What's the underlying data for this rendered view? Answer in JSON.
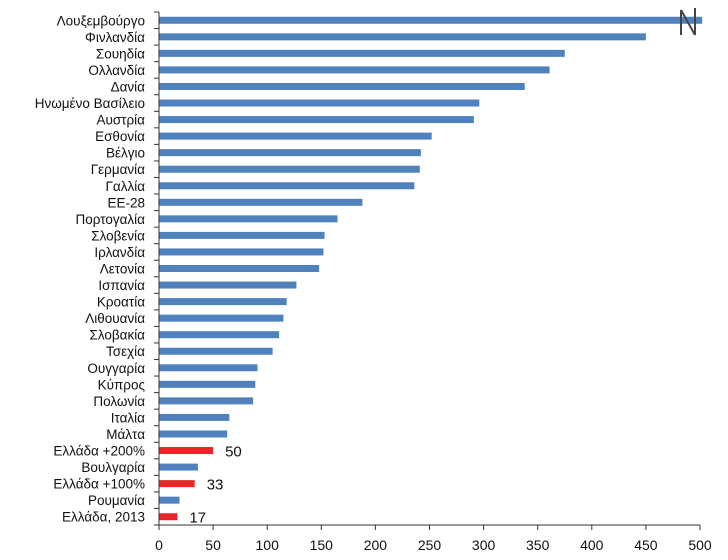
{
  "chart_data": {
    "type": "bar",
    "orientation": "horizontal",
    "title": "",
    "xlabel": "",
    "ylabel": "",
    "xlim": [
      0,
      500
    ],
    "xticks": [
      0,
      50,
      100,
      150,
      200,
      250,
      300,
      350,
      400,
      450,
      500
    ],
    "grid": false,
    "legend": "none",
    "categories": [
      "Λουξεμβούργο",
      "Φινλανδία",
      "Σουηδία",
      "Ολλανδία",
      "Δανία",
      "Ηνωμένο Βασίλειο",
      "Αυστρία",
      "Εσθονία",
      "Βέλγιο",
      "Γερμανία",
      "Γαλλία",
      "ΕΕ-28",
      "Πορτογαλία",
      "Σλοβενία",
      "Ιρλανδία",
      "Λετονία",
      "Ισπανία",
      "Κροατία",
      "Λιθουανία",
      "Σλοβακία",
      "Τσεχία",
      "Ουγγαρία",
      "Κύπρος",
      "Πολωνία",
      "Ιταλία",
      "Μάλτα",
      "Ελλάδα +200%",
      "Βουλγαρία",
      "Ελλάδα +100%",
      "Ρουμανία",
      "Ελλάδα, 2013"
    ],
    "values": [
      502,
      450,
      375,
      361,
      338,
      296,
      291,
      252,
      242,
      241,
      236,
      188,
      165,
      153,
      152,
      148,
      127,
      118,
      115,
      111,
      105,
      91,
      89,
      87,
      65,
      63,
      50,
      36,
      33,
      19,
      17
    ],
    "highlighted_categories": [
      "Ελλάδα +200%",
      "Ελλάδα +100%",
      "Ελλάδα, 2013"
    ],
    "data_labels": [
      {
        "category": "Ελλάδα +200%",
        "text": "50"
      },
      {
        "category": "Ελλάδα +100%",
        "text": "33"
      },
      {
        "category": "Ελλάδα, 2013",
        "text": "17"
      }
    ],
    "colors": {
      "default_bar": "#4f81bd",
      "highlight_bar": "#e8262a",
      "axis": "#333333"
    }
  },
  "logo": {
    "text": "N",
    "name": "corner-logo"
  }
}
